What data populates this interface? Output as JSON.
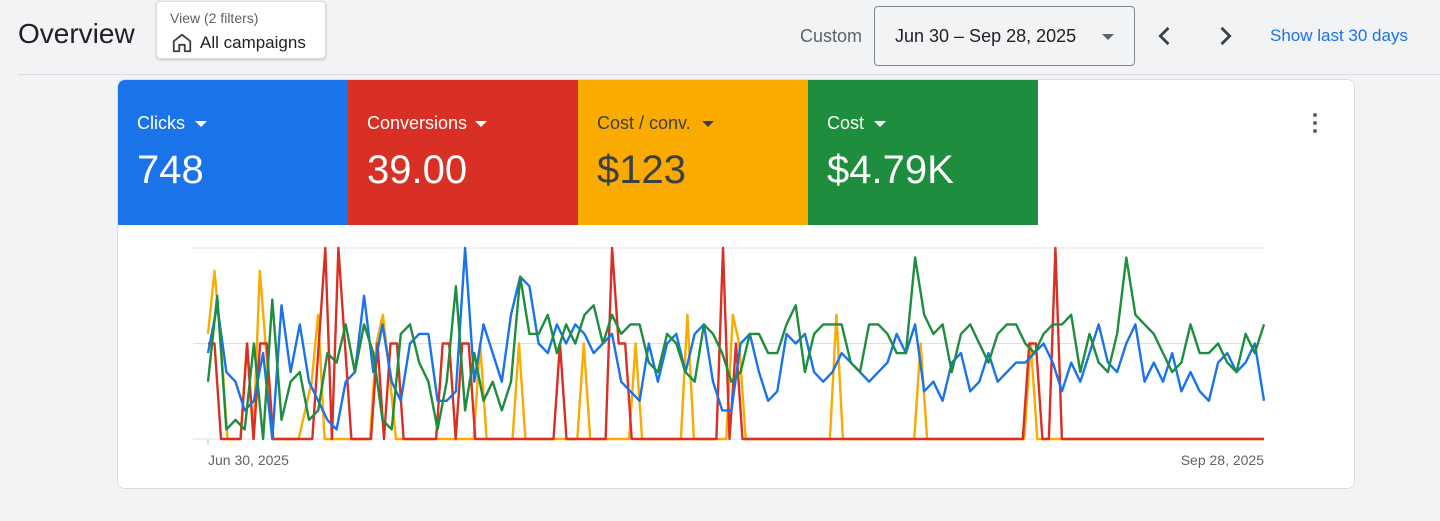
{
  "page": {
    "title": "Overview"
  },
  "filter": {
    "subtitle": "View (2 filters)",
    "label": "All campaigns",
    "icon": "home-icon"
  },
  "date_range": {
    "mode_label": "Custom",
    "value": "Jun 30 – Sep 28, 2025",
    "prev_icon": "chevron-left-icon",
    "next_icon": "chevron-right-icon",
    "shortcut": "Show last 30 days"
  },
  "metrics": [
    {
      "label": "Clicks",
      "value": "748",
      "color": "#1a73e8"
    },
    {
      "label": "Conversions",
      "value": "39.00",
      "color": "#d93025"
    },
    {
      "label": "Cost / conv.",
      "value": "$123",
      "color": "#f9ab00",
      "text_color": "#3c4043"
    },
    {
      "label": "Cost",
      "value": "$4.79K",
      "color": "#1e8e3e"
    }
  ],
  "more_menu_icon": "more-vert-icon",
  "chart_data": {
    "type": "line",
    "x_start_label": "Jun 30, 2025",
    "x_end_label": "Sep 28, 2025",
    "grid": true,
    "ylim": [
      0,
      1
    ],
    "series": [
      {
        "color": "#f9ab00",
        "values": [
          0.55,
          0.88,
          0.5,
          0.0,
          0.0,
          0.0,
          0.5,
          0.0,
          0.88,
          0.45,
          0.0,
          0.0,
          0.0,
          0.0,
          0.0,
          0.15,
          0.3,
          0.65,
          0.0,
          0.0,
          0.0,
          0.0,
          0.0,
          0.0,
          0.0,
          0.0,
          0.5,
          0.65,
          0.35,
          0.0,
          0.0,
          0.0,
          0.0,
          0.0,
          0.0,
          0.0,
          0.0,
          0.0,
          0.0,
          0.0,
          0.0,
          0.0,
          0.5,
          0.0,
          0.0,
          0.0,
          0.0,
          0.0,
          0.5,
          0.0,
          0.0,
          0.0,
          0.0,
          0.0,
          0.0,
          0.0,
          0.0,
          0.0,
          0.5,
          0.0,
          0.0,
          0.0,
          0.0,
          0.0,
          0.0,
          0.0,
          0.5,
          0.0,
          0.0,
          0.0,
          0.0,
          0.0,
          0.0,
          0.0,
          0.65,
          0.0,
          0.0,
          0.0,
          0.0,
          0.0,
          0.0,
          0.65,
          0.5,
          0.0,
          0.0,
          0.0,
          0.0,
          0.0,
          0.0,
          0.0,
          0.0,
          0.0,
          0.0,
          0.0,
          0.0,
          0.0,
          0.0,
          0.65,
          0.0,
          0.0,
          0.0,
          0.0,
          0.0,
          0.0,
          0.0,
          0.0,
          0.0,
          0.0,
          0.0,
          0.0,
          0.5,
          0.0,
          0.0,
          0.0,
          0.0,
          0.0,
          0.0,
          0.0,
          0.0,
          0.0,
          0.0,
          0.0,
          0.0,
          0.0,
          0.0,
          0.0,
          0.0,
          0.5,
          0.0,
          0.0,
          0.0,
          0.0,
          0.0,
          0.0,
          0.0,
          0.0,
          0.0,
          0.0,
          0.0,
          0.0,
          0.0,
          0.0,
          0.0,
          0.0,
          0.0,
          0.0,
          0.0,
          0.0,
          0.0,
          0.0,
          0.0,
          0.0,
          0.0,
          0.0,
          0.0,
          0.0,
          0.0,
          0.0,
          0.0,
          0.0,
          0.0,
          0.0,
          0.0,
          0.0
        ]
      },
      {
        "color": "#d93025",
        "values": [
          0.5,
          0.5,
          0.0,
          0.0,
          0.0,
          0.0,
          0.5,
          0.0,
          0.5,
          0.5,
          0.0,
          0.0,
          0.0,
          0.0,
          0.0,
          0.0,
          0.0,
          0.5,
          1.0,
          0.0,
          1.0,
          0.5,
          0.0,
          0.0,
          0.0,
          0.0,
          0.5,
          0.0,
          0.5,
          0.5,
          0.0,
          0.0,
          0.0,
          0.0,
          0.0,
          0.0,
          0.5,
          0.5,
          0.0,
          0.5,
          0.5,
          0.0,
          0.0,
          0.0,
          0.0,
          0.0,
          0.0,
          0.0,
          0.0,
          0.0,
          0.0,
          0.0,
          0.0,
          0.0,
          0.5,
          0.0,
          0.0,
          0.0,
          0.0,
          0.0,
          0.0,
          0.0,
          1.0,
          0.5,
          0.5,
          0.0,
          0.0,
          0.0,
          0.0,
          0.0,
          0.0,
          0.0,
          0.0,
          0.0,
          0.0,
          0.0,
          0.0,
          0.0,
          0.0,
          1.0,
          0.0,
          0.5,
          0.0,
          0.0,
          0.0,
          0.0,
          0.0,
          0.0,
          0.0,
          0.0,
          0.0,
          0.0,
          0.0,
          0.0,
          0.0,
          0.0,
          0.0,
          0.0,
          0.0,
          0.0,
          0.0,
          0.0,
          0.0,
          0.0,
          0.0,
          0.0,
          0.0,
          0.0,
          0.0,
          0.0,
          0.0,
          0.0,
          0.0,
          0.0,
          0.0,
          0.0,
          0.0,
          0.0,
          0.0,
          0.0,
          0.0,
          0.0,
          0.0,
          0.0,
          0.0,
          0.0,
          0.5,
          0.5,
          0.0,
          0.0,
          1.0,
          0.0,
          0.0,
          0.0,
          0.0,
          0.0,
          0.0,
          0.0,
          0.0,
          0.0,
          0.0,
          0.0,
          0.0,
          0.0,
          0.0,
          0.0,
          0.0,
          0.0,
          0.0,
          0.0,
          0.0,
          0.0,
          0.0,
          0.0,
          0.0,
          0.0,
          0.0,
          0.0,
          0.0,
          0.0,
          0.0,
          0.0,
          0.0
        ]
      },
      {
        "color": "#1a73e8",
        "values": [
          0.45,
          0.7,
          0.35,
          0.3,
          0.15,
          0.2,
          0.45,
          0.0,
          0.7,
          0.35,
          0.6,
          0.3,
          0.2,
          0.1,
          0.05,
          0.3,
          0.35,
          0.75,
          0.35,
          0.6,
          0.3,
          0.2,
          0.5,
          0.55,
          0.55,
          0.2,
          0.2,
          0.25,
          1.0,
          0.3,
          0.6,
          0.45,
          0.3,
          0.65,
          0.85,
          0.8,
          0.5,
          0.45,
          0.6,
          0.5,
          0.6,
          0.55,
          0.45,
          0.5,
          0.55,
          0.3,
          0.25,
          0.2,
          0.5,
          0.3,
          0.5,
          0.55,
          0.35,
          0.55,
          0.6,
          0.3,
          0.15,
          0.15,
          0.5,
          0.55,
          0.35,
          0.2,
          0.25,
          0.55,
          0.5,
          0.55,
          0.35,
          0.3,
          0.35,
          0.45,
          0.4,
          0.35,
          0.3,
          0.35,
          0.4,
          0.55,
          0.45,
          0.6,
          0.25,
          0.3,
          0.2,
          0.4,
          0.45,
          0.25,
          0.3,
          0.45,
          0.3,
          0.35,
          0.4,
          0.4,
          0.45,
          0.5,
          0.4,
          0.25,
          0.4,
          0.3,
          0.45,
          0.6,
          0.4,
          0.35,
          0.5,
          0.6,
          0.3,
          0.4,
          0.3,
          0.45,
          0.25,
          0.35,
          0.25,
          0.2,
          0.4,
          0.45,
          0.35,
          0.4,
          0.5,
          0.2
        ]
      },
      {
        "color": "#1e8e3e",
        "values": [
          0.3,
          0.75,
          0.05,
          0.1,
          0.05,
          0.5,
          0.0,
          0.73,
          0.1,
          0.3,
          0.35,
          0.1,
          0.15,
          0.45,
          0.4,
          0.6,
          0.35,
          0.6,
          0.45,
          0.1,
          0.05,
          0.55,
          0.6,
          0.4,
          0.3,
          0.05,
          0.3,
          0.8,
          0.15,
          0.45,
          0.2,
          0.3,
          0.15,
          0.3,
          0.85,
          0.55,
          0.55,
          0.65,
          0.45,
          0.6,
          0.5,
          0.65,
          0.7,
          0.5,
          0.65,
          0.55,
          0.6,
          0.6,
          0.4,
          0.35,
          0.55,
          0.5,
          0.35,
          0.3,
          0.6,
          0.55,
          0.45,
          0.3,
          0.35,
          0.55,
          0.55,
          0.45,
          0.45,
          0.6,
          0.7,
          0.35,
          0.55,
          0.6,
          0.6,
          0.6,
          0.4,
          0.35,
          0.6,
          0.6,
          0.55,
          0.45,
          0.45,
          0.95,
          0.65,
          0.55,
          0.6,
          0.35,
          0.55,
          0.6,
          0.5,
          0.4,
          0.55,
          0.6,
          0.6,
          0.5,
          0.45,
          0.55,
          0.6,
          0.6,
          0.65,
          0.35,
          0.55,
          0.4,
          0.35,
          0.55,
          0.95,
          0.65,
          0.6,
          0.55,
          0.45,
          0.35,
          0.4,
          0.6,
          0.45,
          0.45,
          0.5,
          0.4,
          0.35,
          0.55,
          0.45,
          0.6
        ]
      }
    ]
  }
}
